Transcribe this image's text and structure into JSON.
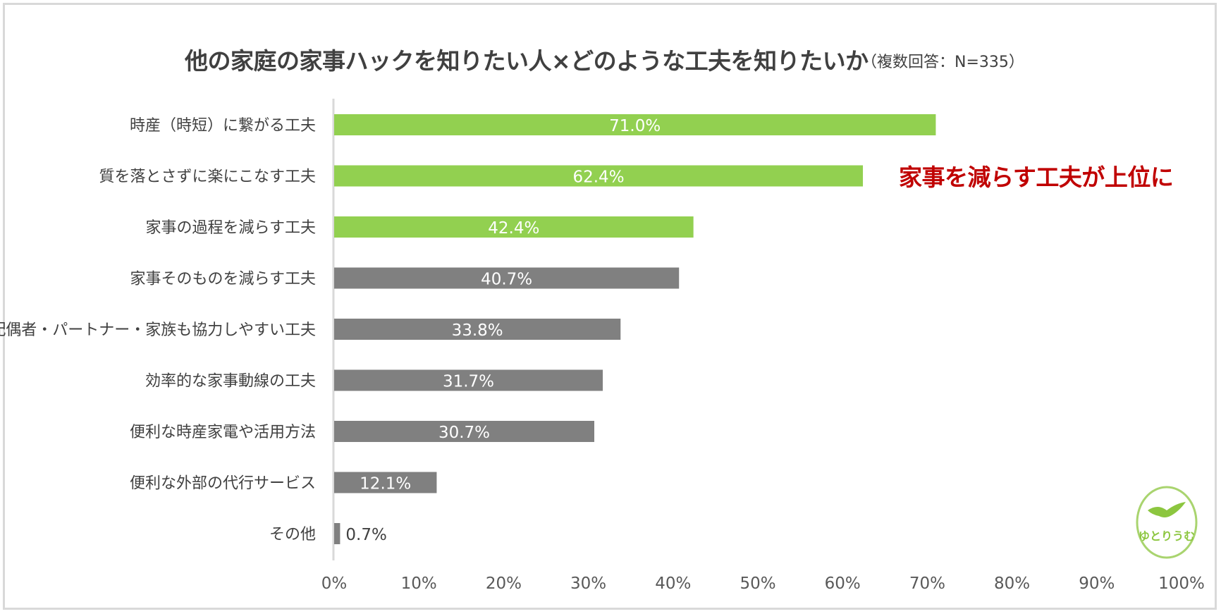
{
  "title": "他の家庭の家事ハックを知りたい人×どのような工夫を知りたいか",
  "subtitle": "（複数回答：N=335）",
  "callout": "家事を減らす工夫が上位に",
  "logo_text": "ゆとりうむ",
  "colors": {
    "highlight_bar": "#92d050",
    "other_bar": "#808080",
    "callout": "#c00000",
    "text": "#404040",
    "axis": "#d9d9d9"
  },
  "chart_data": {
    "type": "bar",
    "orientation": "horizontal",
    "title": "他の家庭の家事ハックを知りたい人×どのような工夫を知りたいか",
    "subtitle": "（複数回答：N=335）",
    "categories": [
      "時産（時短）に繋がる工夫",
      "質を落とさずに楽にこなす工夫",
      "家事の過程を減らす工夫",
      "家事そのものを減らす工夫",
      "配偶者・パートナー・家族も協力しやすい工夫",
      "効率的な家事動線の工夫",
      "便利な時産家電や活用方法",
      "便利な外部の代行サービス",
      "その他"
    ],
    "values": [
      71.0,
      62.4,
      42.4,
      40.7,
      33.8,
      31.7,
      30.7,
      12.1,
      0.7
    ],
    "value_labels": [
      "71.0%",
      "62.4%",
      "42.4%",
      "40.7%",
      "33.8%",
      "31.7%",
      "30.7%",
      "12.1%",
      "0.7%"
    ],
    "highlighted": [
      true,
      true,
      true,
      false,
      false,
      false,
      false,
      false,
      false
    ],
    "xlim": [
      0,
      100
    ],
    "x_ticks": [
      "0%",
      "10%",
      "20%",
      "30%",
      "40%",
      "50%",
      "60%",
      "70%",
      "80%",
      "90%",
      "100%"
    ],
    "grid": false,
    "legend": "none"
  }
}
